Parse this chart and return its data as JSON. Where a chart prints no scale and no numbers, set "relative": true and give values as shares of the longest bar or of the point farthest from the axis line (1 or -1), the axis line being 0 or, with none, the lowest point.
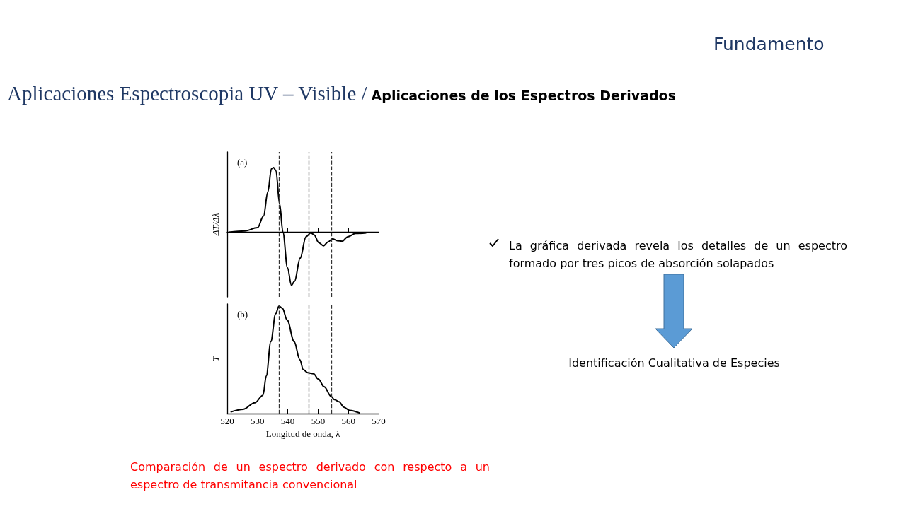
{
  "chart_data": [
    {
      "type": "line",
      "title": "Aplicaciones Espectroscopia UV – Visible /",
      "subtitle": "Aplicaciones de los Espectros Derivados",
      "ylabel": "ΔT/Δλ",
      "annotations": [
        "(a)"
      ],
      "relative": true,
      "tick_labels": false,
      "xlim": [
        520,
        570
      ],
      "xticks": [
        520,
        530,
        540,
        550,
        560,
        570
      ],
      "x": [
        520.6,
        525.8,
        530,
        532,
        533.4,
        534.6,
        535.3,
        536.1,
        537.3,
        538.4,
        539.9,
        541.2,
        542.2,
        544.1,
        546,
        547.6,
        548.7,
        550.2,
        551.8,
        553.3,
        554.8,
        556.3,
        557.9,
        559.8,
        562.4,
        565.9
      ],
      "values": [
        0,
        0.02,
        0.07,
        0.25,
        0.62,
        0.98,
        1,
        0.95,
        0.44,
        0,
        -0.55,
        -0.82,
        -0.76,
        -0.4,
        -0.07,
        -0.01,
        -0.04,
        -0.16,
        -0.21,
        -0.15,
        -0.1,
        -0.13,
        -0.14,
        -0.07,
        -0.02,
        -0.01
      ],
      "color": "#000000",
      "ref_lines": [
        {
          "axis": "x",
          "value": 537,
          "line_style": "dashed",
          "color": "#333333"
        },
        {
          "axis": "x",
          "value": 547,
          "line_style": "dashed",
          "color": "#333333"
        },
        {
          "axis": "x",
          "value": 554.5,
          "line_style": "dashed",
          "color": "#333333"
        }
      ]
    },
    {
      "type": "line",
      "xlabel": "Longitud de onda, λ",
      "ylabel": "T",
      "annotations": [
        "(b)",
        "Comparación de un espectro derivado con respecto a un espectro de transmitancia convencional"
      ],
      "relative": true,
      "tick_labels": "x",
      "xlim": [
        520,
        570
      ],
      "xticks": [
        520,
        530,
        540,
        550,
        560,
        570
      ],
      "x": [
        521.1,
        525.3,
        529.1,
        531.8,
        532.9,
        534.4,
        536,
        537.1,
        538.2,
        539.8,
        542.1,
        544,
        545.1,
        546.6,
        548.5,
        550.1,
        552,
        554.3,
        555.4,
        556.9,
        558.5,
        560.4,
        563.8
      ],
      "values": [
        0.015,
        0.04,
        0.1,
        0.17,
        0.35,
        0.67,
        0.93,
        1,
        0.98,
        0.87,
        0.67,
        0.5,
        0.41,
        0.38,
        0.37,
        0.32,
        0.25,
        0.16,
        0.13,
        0.11,
        0.06,
        0.03,
        0.004
      ],
      "color": "#000000",
      "ref_lines": [
        {
          "axis": "x",
          "value": 537,
          "line_style": "dashed",
          "color": "#333333"
        },
        {
          "axis": "x",
          "value": 547,
          "line_style": "dashed",
          "color": "#333333"
        },
        {
          "axis": "x",
          "value": 554.5,
          "line_style": "dashed",
          "color": "#333333"
        }
      ]
    },
    {
      "type": "other",
      "annotations": [
        "Fundamento",
        "La gráfica derivada revela los detalles de un espectro formado por tres picos de absorción solapados",
        "Identificación Cualitativa de Especies"
      ]
    }
  ]
}
